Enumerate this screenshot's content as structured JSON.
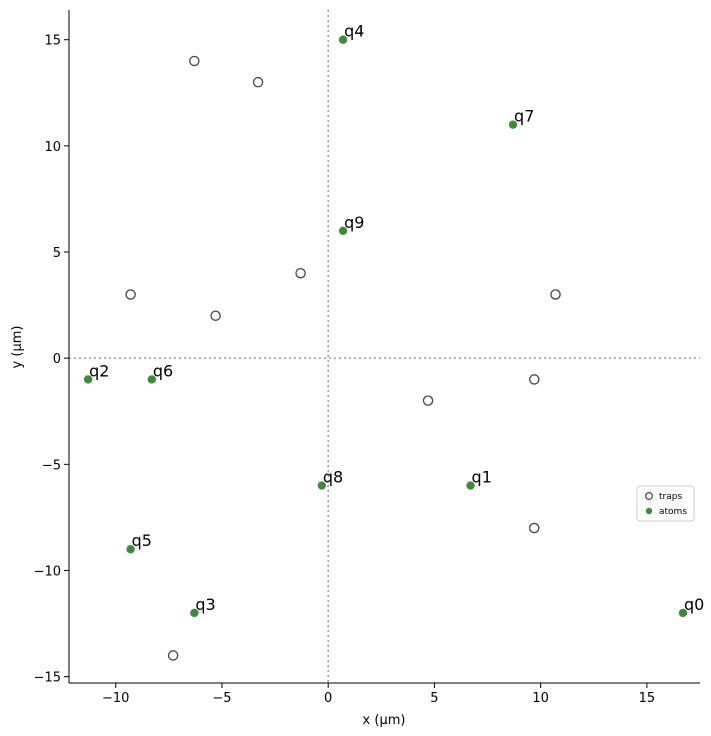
{
  "chart_data": {
    "type": "scatter",
    "title": "",
    "xlabel": "x (µm)",
    "ylabel": "y (µm)",
    "xlim": [
      -12.2,
      17.5
    ],
    "ylim": [
      -15.3,
      16.4
    ],
    "xticks": [
      -10,
      -5,
      0,
      5,
      10,
      15
    ],
    "yticks": [
      -15,
      -10,
      -5,
      0,
      5,
      10,
      15
    ],
    "xtick_labels": [
      "−10",
      "−5",
      "0",
      "5",
      "10",
      "15"
    ],
    "ytick_labels": [
      "−15",
      "−10",
      "−5",
      "0",
      "5",
      "10",
      "15"
    ],
    "grid": false,
    "reference_lines": [
      {
        "axis": "x",
        "value": 0
      },
      {
        "axis": "y",
        "value": 0
      }
    ],
    "legend": {
      "placement": "center-right",
      "entries": [
        "traps",
        "atoms"
      ]
    },
    "series": [
      {
        "name": "traps",
        "marker": "open-circle",
        "color": "#444444",
        "points": [
          {
            "x": -6.3,
            "y": 14.0
          },
          {
            "x": -3.3,
            "y": 13.0
          },
          {
            "x": -1.3,
            "y": 4.0
          },
          {
            "x": -9.3,
            "y": 3.0
          },
          {
            "x": -5.3,
            "y": 2.0
          },
          {
            "x": 10.7,
            "y": 3.0
          },
          {
            "x": 9.7,
            "y": -1.0
          },
          {
            "x": 4.7,
            "y": -2.0
          },
          {
            "x": 9.7,
            "y": -8.0
          },
          {
            "x": -7.3,
            "y": -14.0
          }
        ]
      },
      {
        "name": "atoms",
        "marker": "filled-circle",
        "color": "#3f8a3f",
        "points": [
          {
            "label": "q0",
            "x": 16.7,
            "y": -12.0
          },
          {
            "label": "q1",
            "x": 6.7,
            "y": -6.0
          },
          {
            "label": "q2",
            "x": -11.3,
            "y": -1.0
          },
          {
            "label": "q3",
            "x": -6.3,
            "y": -12.0
          },
          {
            "label": "q4",
            "x": 0.7,
            "y": 15.0
          },
          {
            "label": "q5",
            "x": -9.3,
            "y": -9.0
          },
          {
            "label": "q6",
            "x": -8.3,
            "y": -1.0
          },
          {
            "label": "q7",
            "x": 8.7,
            "y": 11.0
          },
          {
            "label": "q8",
            "x": -0.3,
            "y": -6.0
          },
          {
            "label": "q9",
            "x": 0.7,
            "y": 6.0
          }
        ]
      }
    ]
  }
}
